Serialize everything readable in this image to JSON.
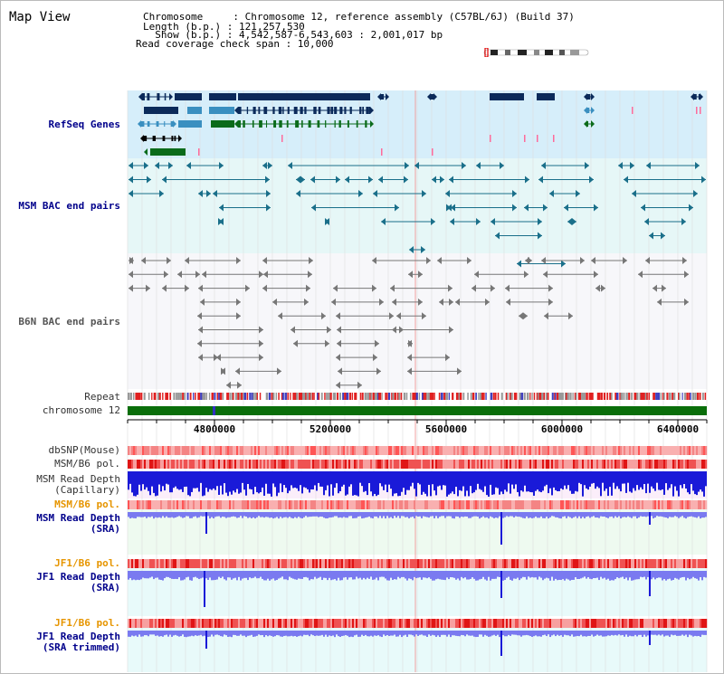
{
  "header": {
    "title": "Map View",
    "chromosome_line": "Chromosome     : Chromosome 12, reference assembly (C57BL/6J) (Build 37)",
    "length_line": "Length (b.p.) : 121,257,530",
    "show_line": "  Show (b.p.) : 4,542,587-6,543,603 : 2,001,017 bp",
    "coverage_line": "Read coverage check span : 10,000"
  },
  "tracks": {
    "refseq": "RefSeq Genes",
    "msm_bac": "MSM BAC end pairs",
    "b6n_bac": "B6N BAC end pairs",
    "repeat": "Repeat",
    "chromosome": "chromosome 12",
    "dbsnp": "dbSNP(Mouse)",
    "msm_b6_pol_1": "MSM/B6 pol.",
    "msm_read_cap_1": "MSM Read Depth",
    "msm_read_cap_2": "(Capillary)",
    "msm_b6_pol_2": "MSM/B6 pol.",
    "msm_read_sra_1": "MSM Read Depth",
    "msm_read_sra_2": "(SRA)",
    "jf1_b6_pol_1": "JF1/B6 pol.",
    "jf1_read_sra_1": "JF1 Read Depth",
    "jf1_read_sra_2": "(SRA)",
    "jf1_b6_pol_2": "JF1/B6 pol.",
    "jf1_read_trim_1": "JF1 Read Depth",
    "jf1_read_trim_2": "(SRA trimmed)"
  },
  "axis": {
    "ticks": [
      "4800000",
      "5200000",
      "5600000",
      "6000000",
      "6400000"
    ],
    "range_start": 4542587,
    "range_end": 6543603
  },
  "colors": {
    "refseq_band": "#d6eefa",
    "msm_band": "#e6f7f7",
    "b6n_band": "#f7f7fa",
    "gene_dark": "#0b2a5a",
    "gene_mid": "#3a8fc0",
    "gene_green": "#0b6b1a",
    "bac_msm": "#1a6f8a",
    "bac_b6n": "#777777",
    "chromosome_bar": "#0a6e0a",
    "depth_blue": "#1a1ad8",
    "depth_light": "#7a7af0",
    "label_blue": "#00008b",
    "label_orange": "#e69500"
  }
}
